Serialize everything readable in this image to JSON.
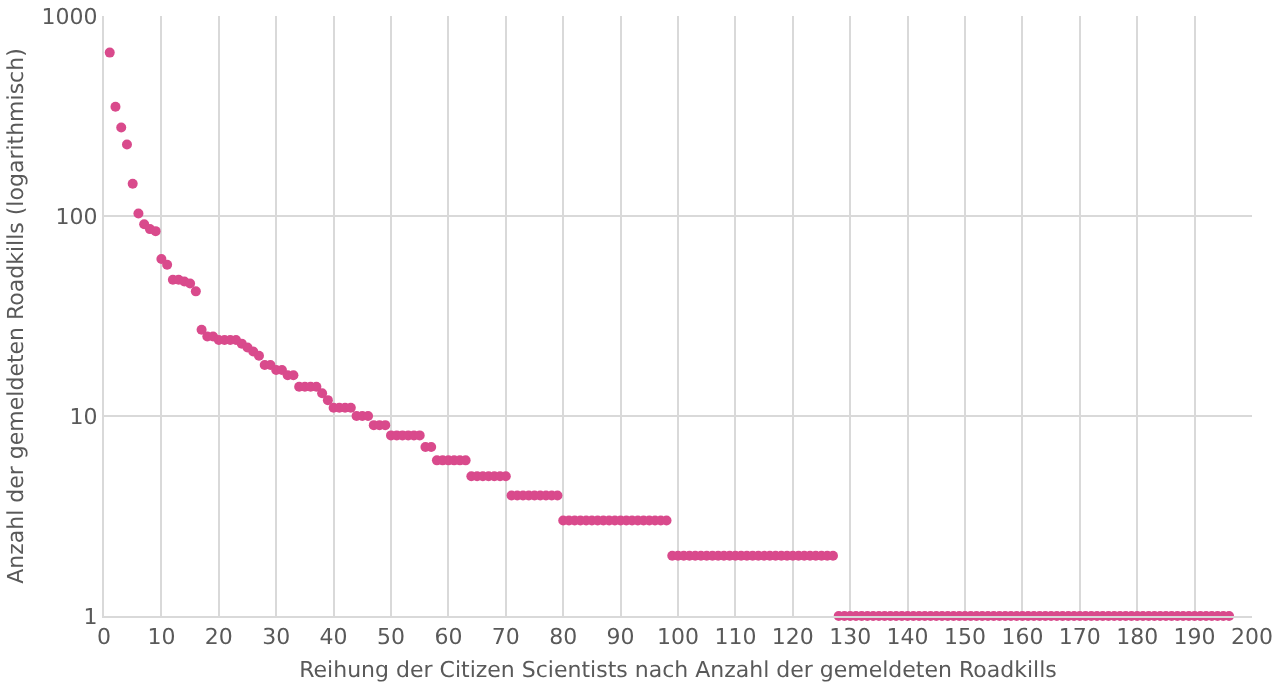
{
  "chart_data": {
    "type": "scatter",
    "xlabel": "Reihung der Citizen Scientists nach Anzahl der gemeldeten Roadkills",
    "ylabel": "Anzahl der gemeldeten Roadkills (logarithmisch)",
    "x": [
      1,
      2,
      3,
      4,
      5,
      6,
      7,
      8,
      9,
      10,
      11,
      12,
      13,
      14,
      15,
      16,
      17,
      18,
      19,
      20,
      21,
      22,
      23,
      24,
      25,
      26,
      27,
      28,
      29,
      30,
      31,
      32,
      33,
      34,
      35,
      36,
      37,
      38,
      39,
      40,
      41,
      42,
      43,
      44,
      45,
      46,
      47,
      48,
      49,
      50,
      51,
      52,
      53,
      54,
      55,
      56,
      57,
      58,
      59,
      60,
      61,
      62,
      63,
      64,
      65,
      66,
      67,
      68,
      69,
      70,
      71,
      72,
      73,
      74,
      75,
      76,
      77,
      78,
      79,
      80,
      81,
      82,
      83,
      84,
      85,
      86,
      87,
      88,
      89,
      90,
      91,
      92,
      93,
      94,
      95,
      96,
      97,
      98,
      99,
      100,
      101,
      102,
      103,
      104,
      105,
      106,
      107,
      108,
      109,
      110,
      111,
      112,
      113,
      114,
      115,
      116,
      117,
      118,
      119,
      120,
      121,
      122,
      123,
      124,
      125,
      126,
      127,
      128,
      129,
      130,
      131,
      132,
      133,
      134,
      135,
      136,
      137,
      138,
      139,
      140,
      141,
      142,
      143,
      144,
      145,
      146,
      147,
      148,
      149,
      150,
      151,
      152,
      153,
      154,
      155,
      156,
      157,
      158,
      159,
      160,
      161,
      162,
      163,
      164,
      165,
      166,
      167,
      168,
      169,
      170,
      171,
      172,
      173,
      174,
      175,
      176,
      177,
      178,
      179,
      180,
      181,
      182,
      183,
      184,
      185,
      186,
      187,
      188,
      189,
      190,
      191,
      192,
      193,
      194,
      195,
      196
    ],
    "series": [
      {
        "color": "#d94a8c",
        "values": [
          656,
          352,
          277,
          228,
          145,
          103,
          91,
          86,
          84,
          61,
          57,
          48,
          48,
          47,
          46,
          42,
          27,
          25,
          25,
          24,
          24,
          24,
          24,
          23,
          22,
          21,
          20,
          18,
          18,
          17,
          17,
          16,
          16,
          14,
          14,
          14,
          14,
          13,
          12,
          11,
          11,
          11,
          11,
          10,
          10,
          10,
          9,
          9,
          9,
          8,
          8,
          8,
          8,
          8,
          8,
          7,
          7,
          6,
          6,
          6,
          6,
          6,
          6,
          5,
          5,
          5,
          5,
          5,
          5,
          5,
          4,
          4,
          4,
          4,
          4,
          4,
          4,
          4,
          4,
          3,
          3,
          3,
          3,
          3,
          3,
          3,
          3,
          3,
          3,
          3,
          3,
          3,
          3,
          3,
          3,
          3,
          3,
          3,
          2,
          2,
          2,
          2,
          2,
          2,
          2,
          2,
          2,
          2,
          2,
          2,
          2,
          2,
          2,
          2,
          2,
          2,
          2,
          2,
          2,
          2,
          2,
          2,
          2,
          2,
          2,
          2,
          2,
          1,
          1,
          1,
          1,
          1,
          1,
          1,
          1,
          1,
          1,
          1,
          1,
          1,
          1,
          1,
          1,
          1,
          1,
          1,
          1,
          1,
          1,
          1,
          1,
          1,
          1,
          1,
          1,
          1,
          1,
          1,
          1,
          1,
          1,
          1,
          1,
          1,
          1,
          1,
          1,
          1,
          1,
          1,
          1,
          1,
          1,
          1,
          1,
          1,
          1,
          1,
          1,
          1,
          1,
          1,
          1,
          1,
          1,
          1,
          1,
          1,
          1,
          1,
          1,
          1,
          1,
          1,
          1,
          1
        ]
      }
    ],
    "xlim": [
      0,
      200
    ],
    "xticks": [
      0,
      10,
      20,
      30,
      40,
      50,
      60,
      70,
      80,
      90,
      100,
      110,
      120,
      130,
      140,
      150,
      160,
      170,
      180,
      190,
      200
    ],
    "ylim": [
      1,
      1000
    ],
    "yticks": [
      1,
      10,
      100,
      1000
    ],
    "log": "y",
    "grid": true,
    "marker": "circle"
  }
}
